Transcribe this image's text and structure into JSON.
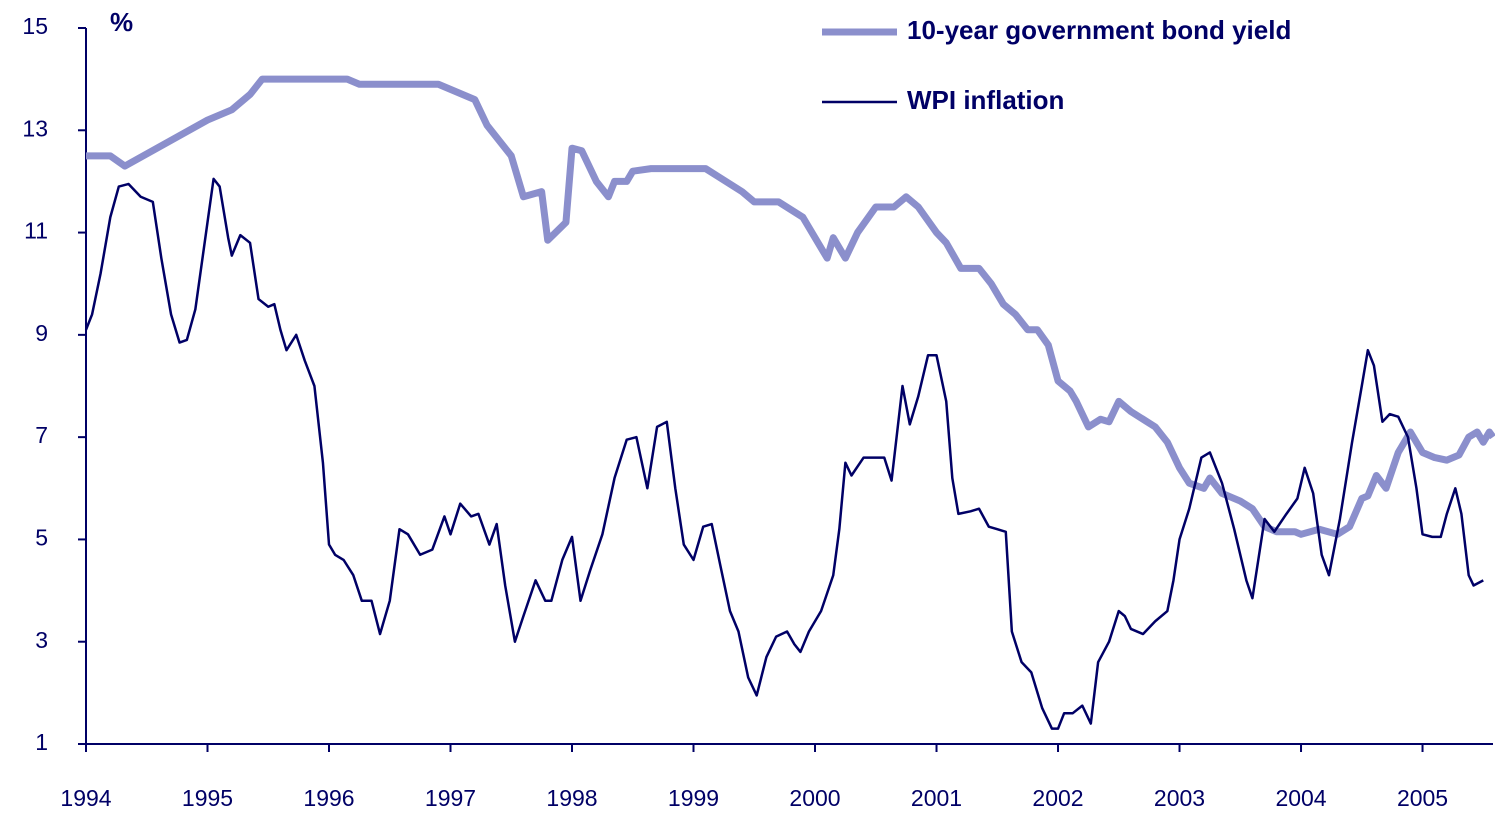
{
  "chart_data": {
    "type": "line",
    "y_label": "%",
    "xlim": [
      1994,
      2005.58
    ],
    "xticks": [
      1994,
      1995,
      1996,
      1997,
      1998,
      1999,
      2000,
      2001,
      2002,
      2003,
      2004,
      2005
    ],
    "ylim": [
      1,
      15
    ],
    "yticks": [
      1,
      3,
      5,
      7,
      9,
      11,
      13,
      15
    ],
    "grid": false,
    "series": [
      {
        "name": "10-year government bond yield",
        "color": "#8b8fcc",
        "width": 7,
        "x": [
          1994.0,
          1994.2,
          1994.32,
          1995.0,
          1995.2,
          1995.35,
          1995.45,
          1996.15,
          1996.25,
          1996.9,
          1997.0,
          1997.2,
          1997.3,
          1997.5,
          1997.6,
          1997.75,
          1997.8,
          1997.95,
          1998.0,
          1998.08,
          1998.2,
          1998.3,
          1998.35,
          1998.45,
          1998.5,
          1998.65,
          1999.1,
          1999.2,
          1999.4,
          1999.5,
          1999.7,
          1999.9,
          2000.1,
          2000.15,
          2000.25,
          2000.35,
          2000.5,
          2000.65,
          2000.75,
          2000.85,
          2001.0,
          2001.08,
          2001.2,
          2001.35,
          2001.45,
          2001.55,
          2001.65,
          2001.75,
          2001.83,
          2001.92,
          2002.0,
          2002.1,
          2002.15,
          2002.25,
          2002.35,
          2002.42,
          2002.5,
          2002.6,
          2002.8,
          2002.9,
          2003.0,
          2003.08,
          2003.2,
          2003.25,
          2003.35,
          2003.5,
          2003.6,
          2003.7,
          2003.8,
          2003.95,
          2004.0,
          2004.15,
          2004.3,
          2004.4,
          2004.5,
          2004.55,
          2004.62,
          2004.7,
          2004.8,
          2004.9,
          2005.0,
          2005.1,
          2005.2,
          2005.3,
          2005.38,
          2005.45,
          2005.5,
          2005.55,
          2005.58
        ],
        "values": [
          12.5,
          12.5,
          12.3,
          13.2,
          13.4,
          13.7,
          14.0,
          14.0,
          13.9,
          13.9,
          13.8,
          13.6,
          13.1,
          12.5,
          11.7,
          11.8,
          10.85,
          11.2,
          12.65,
          12.6,
          12.0,
          11.7,
          12.0,
          12.0,
          12.2,
          12.25,
          12.25,
          12.1,
          11.8,
          11.6,
          11.6,
          11.3,
          10.5,
          10.9,
          10.5,
          11.0,
          11.5,
          11.5,
          11.7,
          11.5,
          11.0,
          10.8,
          10.3,
          10.3,
          10.0,
          9.6,
          9.4,
          9.1,
          9.1,
          8.8,
          8.1,
          7.9,
          7.7,
          7.2,
          7.35,
          7.3,
          7.7,
          7.5,
          7.2,
          6.9,
          6.4,
          6.1,
          6.0,
          6.2,
          5.9,
          5.75,
          5.6,
          5.25,
          5.15,
          5.15,
          5.1,
          5.2,
          5.1,
          5.25,
          5.8,
          5.85,
          6.25,
          6.0,
          6.7,
          7.1,
          6.7,
          6.6,
          6.55,
          6.65,
          7.0,
          7.1,
          6.9,
          7.1,
          7.0
        ]
      },
      {
        "name": "WPI inflation",
        "color": "#000066",
        "width": 2.5,
        "x": [
          1994.0,
          1994.05,
          1994.12,
          1994.2,
          1994.27,
          1994.35,
          1994.45,
          1994.55,
          1994.62,
          1994.7,
          1994.77,
          1994.83,
          1994.9,
          1995.0,
          1995.05,
          1995.1,
          1995.17,
          1995.2,
          1995.27,
          1995.35,
          1995.42,
          1995.5,
          1995.55,
          1995.6,
          1995.65,
          1995.73,
          1995.8,
          1995.88,
          1995.95,
          1996.0,
          1996.05,
          1996.12,
          1996.2,
          1996.27,
          1996.35,
          1996.42,
          1996.5,
          1996.58,
          1996.65,
          1996.75,
          1996.85,
          1996.95,
          1997.0,
          1997.08,
          1997.17,
          1997.23,
          1997.32,
          1997.38,
          1997.45,
          1997.53,
          1997.6,
          1997.7,
          1997.78,
          1997.83,
          1997.92,
          1998.0,
          1998.07,
          1998.15,
          1998.25,
          1998.35,
          1998.45,
          1998.53,
          1998.62,
          1998.7,
          1998.78,
          1998.85,
          1998.92,
          1999.0,
          1999.08,
          1999.15,
          1999.22,
          1999.3,
          1999.37,
          1999.45,
          1999.52,
          1999.6,
          1999.68,
          1999.77,
          1999.83,
          1999.88,
          1999.95,
          2000.05,
          2000.15,
          2000.2,
          2000.25,
          2000.3,
          2000.4,
          2000.5,
          2000.57,
          2000.63,
          2000.72,
          2000.78,
          2000.85,
          2000.93,
          2001.0,
          2001.08,
          2001.13,
          2001.18,
          2001.28,
          2001.35,
          2001.43,
          2001.5,
          2001.57,
          2001.62,
          2001.7,
          2001.78,
          2001.87,
          2001.95,
          2002.0,
          2002.05,
          2002.12,
          2002.2,
          2002.27,
          2002.33,
          2002.42,
          2002.5,
          2002.55,
          2002.6,
          2002.7,
          2002.8,
          2002.9,
          2002.95,
          2003.0,
          2003.08,
          2003.18,
          2003.25,
          2003.35,
          2003.45,
          2003.55,
          2003.6,
          2003.7,
          2003.78,
          2003.88,
          2003.97,
          2004.03,
          2004.1,
          2004.17,
          2004.23,
          2004.32,
          2004.42,
          2004.5,
          2004.55,
          2004.6,
          2004.67,
          2004.73,
          2004.8,
          2004.88,
          2004.95,
          2005.0,
          2005.08,
          2005.15,
          2005.2,
          2005.27,
          2005.32,
          2005.38,
          2005.42,
          2005.5
        ],
        "values": [
          9.1,
          9.4,
          10.2,
          11.3,
          11.9,
          11.95,
          11.7,
          11.6,
          10.5,
          9.4,
          8.85,
          8.9,
          9.5,
          11.2,
          12.05,
          11.9,
          10.9,
          10.55,
          10.95,
          10.8,
          9.7,
          9.55,
          9.6,
          9.1,
          8.7,
          9.0,
          8.5,
          8.0,
          6.5,
          4.9,
          4.7,
          4.6,
          4.3,
          3.8,
          3.8,
          3.15,
          3.8,
          5.2,
          5.1,
          4.7,
          4.8,
          5.45,
          5.1,
          5.7,
          5.45,
          5.5,
          4.9,
          5.3,
          4.1,
          3.0,
          3.5,
          4.2,
          3.8,
          3.8,
          4.6,
          5.05,
          3.8,
          4.4,
          5.1,
          6.2,
          6.95,
          7.0,
          6.0,
          7.2,
          7.3,
          6.0,
          4.9,
          4.6,
          5.25,
          5.3,
          4.5,
          3.6,
          3.2,
          2.3,
          1.95,
          2.7,
          3.1,
          3.2,
          2.95,
          2.8,
          3.2,
          3.6,
          4.3,
          5.2,
          6.5,
          6.25,
          6.6,
          6.6,
          6.6,
          6.15,
          8.0,
          7.25,
          7.8,
          8.6,
          8.6,
          7.7,
          6.2,
          5.5,
          5.55,
          5.6,
          5.25,
          5.2,
          5.15,
          3.2,
          2.6,
          2.4,
          1.7,
          1.3,
          1.3,
          1.6,
          1.6,
          1.75,
          1.4,
          2.6,
          3.0,
          3.6,
          3.5,
          3.25,
          3.15,
          3.4,
          3.6,
          4.2,
          5.0,
          5.6,
          6.6,
          6.7,
          6.1,
          5.2,
          4.2,
          3.85,
          5.4,
          5.15,
          5.5,
          5.8,
          6.4,
          5.9,
          4.7,
          4.3,
          5.4,
          6.9,
          8.0,
          8.7,
          8.4,
          7.3,
          7.45,
          7.4,
          7.0,
          6.0,
          5.1,
          5.05,
          5.05,
          5.5,
          6.0,
          5.5,
          4.3,
          4.1,
          4.2
        ]
      }
    ]
  }
}
